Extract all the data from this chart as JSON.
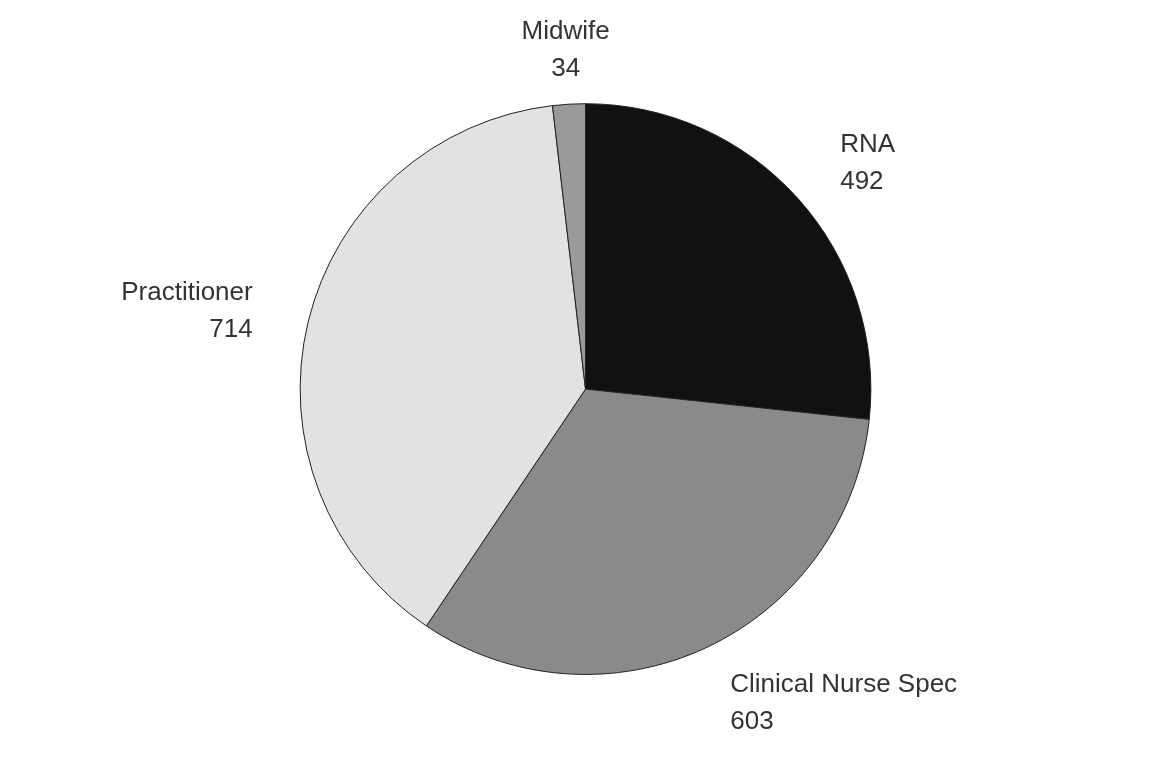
{
  "chart_data": {
    "type": "pie",
    "categories": [
      "RNA",
      "Clinical Nurse Spec",
      "Practitioner",
      "Midwife"
    ],
    "values": [
      492,
      603,
      714,
      34
    ],
    "colors": [
      "#111111",
      "#8a8a8a",
      "#e2e2e2",
      "#9a9a9a"
    ],
    "data_labels": true
  }
}
